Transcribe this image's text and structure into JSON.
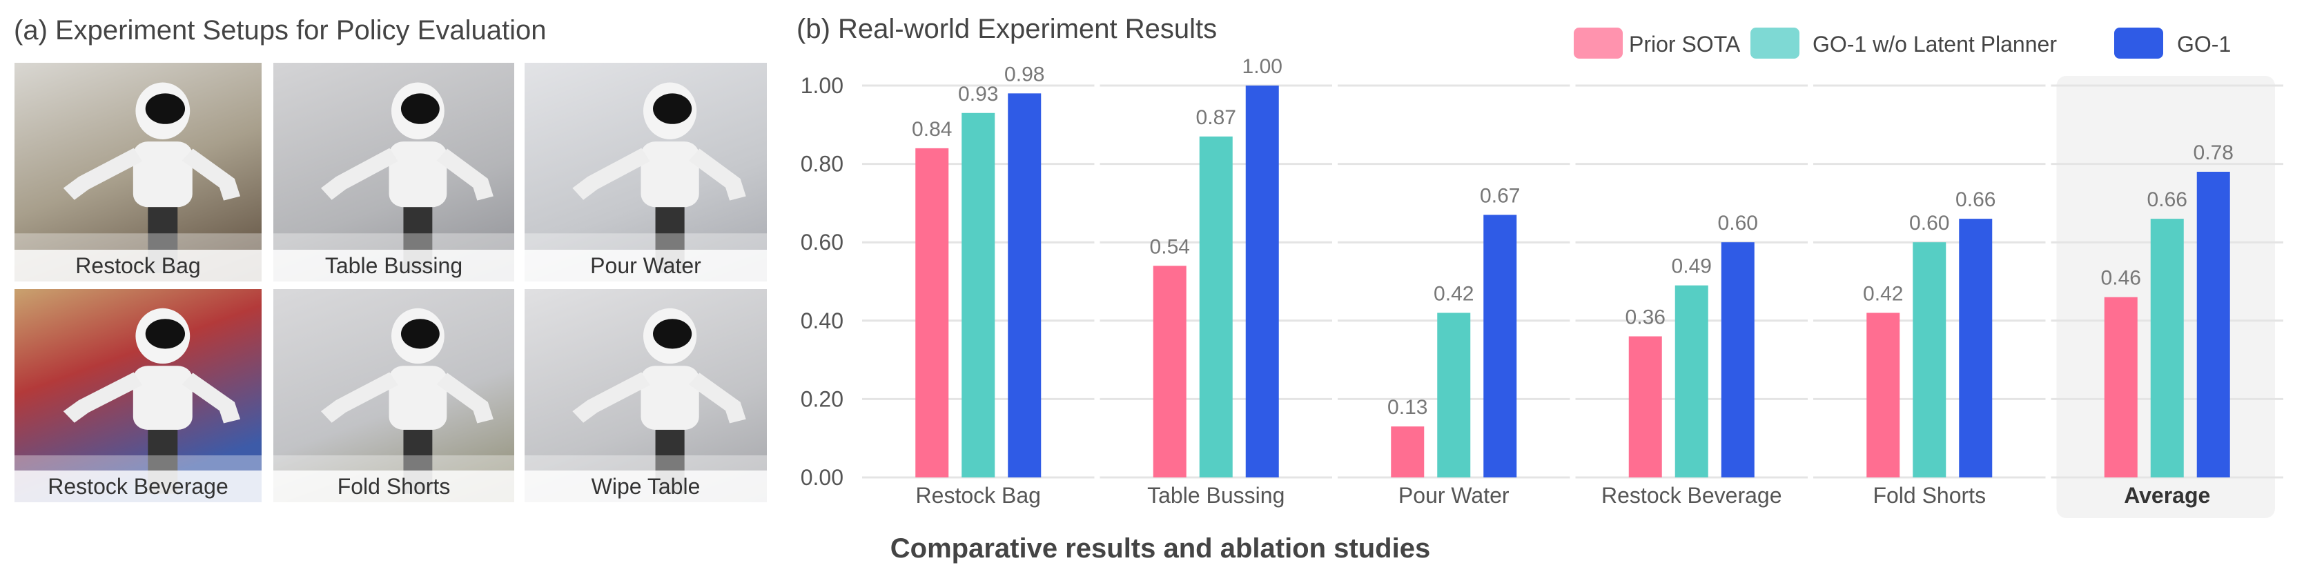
{
  "panel_a": {
    "title": "(a) Experiment Setups for Policy Evaluation",
    "photos": [
      {
        "label": "Restock Bag"
      },
      {
        "label": "Table Bussing"
      },
      {
        "label": "Pour Water"
      },
      {
        "label": "Restock Beverage"
      },
      {
        "label": "Fold Shorts"
      },
      {
        "label": "Wipe Table"
      }
    ]
  },
  "caption": "Comparative results and ablation studies",
  "chart_data": {
    "type": "bar",
    "title": "(b) Real-world Experiment Results",
    "categories": [
      "Restock Bag",
      "Table Bussing",
      "Pour Water",
      "Restock Beverage",
      "Fold Shorts",
      "Average"
    ],
    "highlighted_category": "Average",
    "series": [
      {
        "name": "Prior SOTA",
        "color": "#FF6E91",
        "legend_color": "#FF93AE",
        "values": [
          0.84,
          0.54,
          0.13,
          0.36,
          0.42,
          0.46
        ]
      },
      {
        "name": "GO-1 w/o Latent Planner",
        "color": "#56CEC4",
        "legend_color": "#7ED9D4",
        "values": [
          0.93,
          0.87,
          0.42,
          0.49,
          0.6,
          0.66
        ]
      },
      {
        "name": "GO-1",
        "color": "#2F5BE6",
        "legend_color": "#2F5BE6",
        "values": [
          0.98,
          1.0,
          0.67,
          0.6,
          0.66,
          0.78
        ]
      }
    ],
    "yticks": [
      "0.00",
      "0.20",
      "0.40",
      "0.60",
      "0.80",
      "1.00"
    ],
    "ylim": [
      0,
      1.0
    ],
    "xlabel": "",
    "ylabel": "",
    "grid": true,
    "legend_position": "top-right"
  }
}
